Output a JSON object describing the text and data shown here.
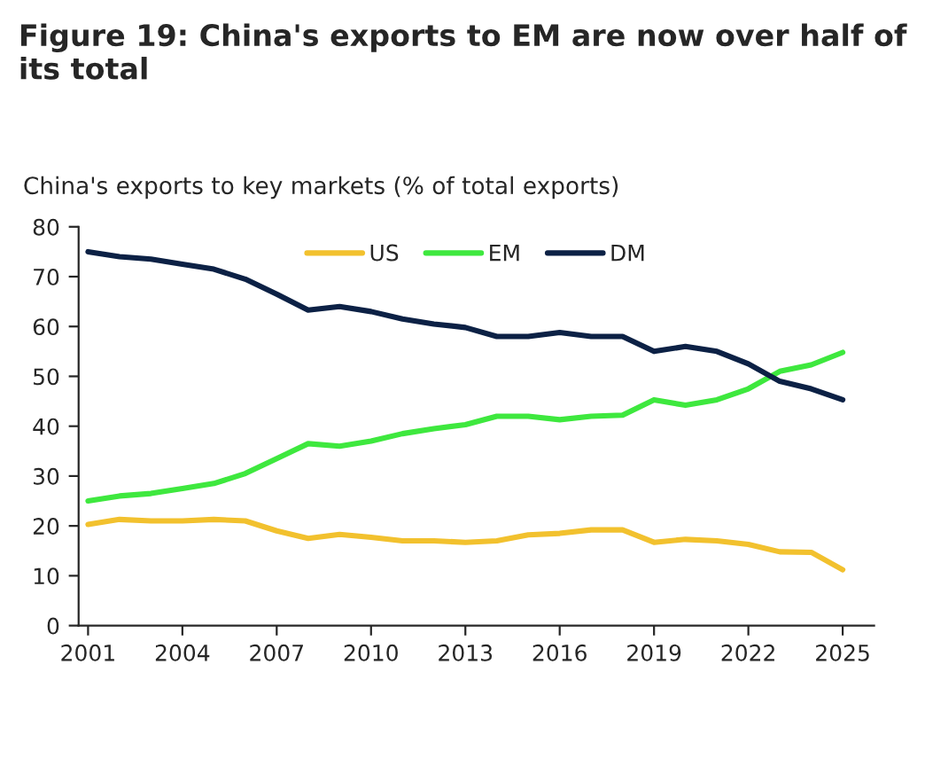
{
  "chart_data": {
    "type": "line",
    "title": "Figure 19: China's exports to EM are now over half of its total",
    "ylabel": "China's exports to key markets (% of total exports)",
    "x": [
      2001,
      2002,
      2003,
      2004,
      2005,
      2006,
      2007,
      2008,
      2009,
      2010,
      2011,
      2012,
      2013,
      2014,
      2015,
      2016,
      2017,
      2018,
      2019,
      2020,
      2021,
      2022,
      2023,
      2024,
      2025
    ],
    "series": [
      {
        "name": "US",
        "color": "#f2c12e",
        "values": [
          20.3,
          21.3,
          21,
          21,
          21.3,
          21,
          19,
          17.5,
          18.3,
          17.7,
          17,
          17,
          16.7,
          17,
          18.2,
          18.5,
          19.2,
          19.2,
          16.7,
          17.3,
          17,
          16.3,
          14.8,
          14.7,
          11.2
        ]
      },
      {
        "name": "EM",
        "color": "#3ee83e",
        "values": [
          25,
          26,
          26.5,
          27.5,
          28.5,
          30.5,
          33.5,
          36.5,
          36,
          37,
          38.5,
          39.5,
          40.3,
          42,
          42,
          41.3,
          42,
          42.2,
          45.3,
          44.2,
          45.3,
          47.5,
          51,
          52.3,
          54.8
        ]
      },
      {
        "name": "DM",
        "color": "#0c2145",
        "values": [
          75,
          74,
          73.5,
          72.5,
          71.5,
          69.5,
          66.5,
          63.3,
          64,
          63,
          61.5,
          60.5,
          59.8,
          58,
          58,
          58.8,
          58,
          58,
          55,
          56,
          55,
          52.5,
          49,
          47.5,
          45.3
        ]
      }
    ],
    "xlim": [
      2000.7,
      2026
    ],
    "xticks": [
      2001,
      2004,
      2007,
      2010,
      2013,
      2016,
      2019,
      2022,
      2025
    ],
    "ylim": [
      0,
      80
    ],
    "yticks": [
      0,
      10,
      20,
      30,
      40,
      50,
      60,
      70,
      80
    ],
    "grid": false,
    "legend": "top",
    "marker": "none",
    "line_style": "solid"
  }
}
